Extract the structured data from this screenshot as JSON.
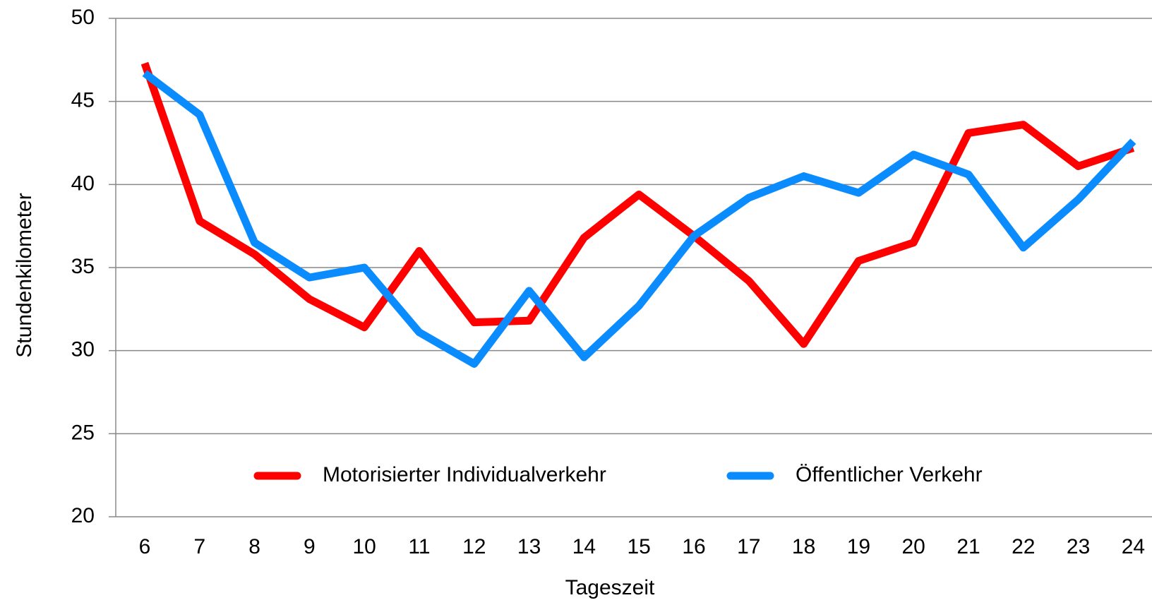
{
  "chart_data": {
    "type": "line",
    "x_label": "Tageszeit",
    "y_label": "Stundenkilometer",
    "categories": [
      6,
      7,
      8,
      9,
      10,
      11,
      12,
      13,
      14,
      15,
      16,
      17,
      18,
      19,
      20,
      21,
      22,
      23,
      24
    ],
    "series": [
      {
        "name": "Motorisierter Individualverkehr",
        "color": "#ff0000",
        "values": [
          47.3,
          37.8,
          35.8,
          33.1,
          31.4,
          36.0,
          31.7,
          31.8,
          36.8,
          39.4,
          36.9,
          34.2,
          30.4,
          35.4,
          36.5,
          43.1,
          43.6,
          41.1,
          42.2
        ]
      },
      {
        "name": "Öffentlicher Verkehr",
        "color": "#0a8cff",
        "values": [
          46.7,
          44.2,
          36.5,
          34.4,
          35.0,
          31.1,
          29.2,
          33.6,
          29.6,
          32.7,
          36.9,
          39.2,
          40.5,
          39.5,
          41.8,
          40.6,
          36.2,
          39.1,
          42.6
        ]
      }
    ],
    "ylim": [
      20,
      50
    ],
    "yticks": [
      20,
      25,
      30,
      35,
      40,
      45,
      50
    ],
    "grid": true,
    "legend": "bottom"
  }
}
